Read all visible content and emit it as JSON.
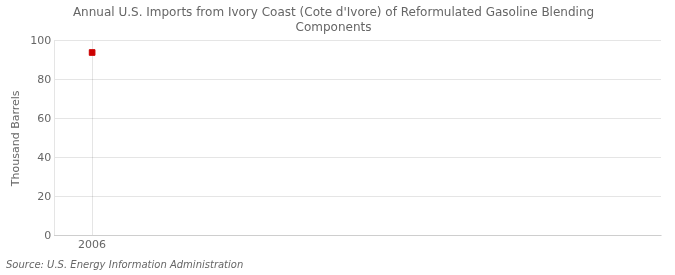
{
  "chart_data": {
    "type": "scatter",
    "title": "Annual U.S. Imports from Ivory Coast (Cote d'Ivore) of Reformulated Gasoline Blending\nComponents",
    "ylabel": "Thousand Barrels",
    "annotation": "Source: U.S. Energy Information Administration",
    "x": [
      2006
    ],
    "values": [
      94
    ],
    "color": "#cc0000",
    "marker": "square",
    "xlim": [
      2005.4,
      2015.0
    ],
    "ylim": [
      0,
      100
    ],
    "xticks": [
      2006
    ],
    "yticks": [
      0,
      20,
      40,
      60,
      80,
      100
    ],
    "grid": true
  }
}
